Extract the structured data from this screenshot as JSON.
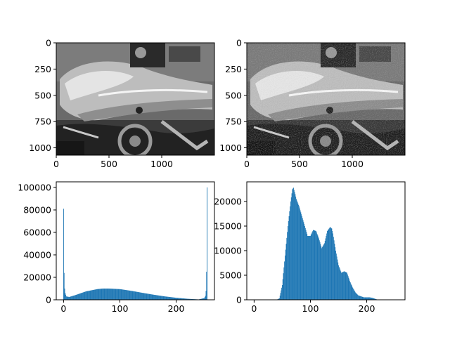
{
  "chart_data": [
    {
      "type": "image",
      "description_role": "noisy-image",
      "xlim": [
        0,
        1500
      ],
      "ylim": [
        1070,
        0
      ],
      "xticks": [
        0,
        500,
        1000
      ],
      "yticks": [
        0,
        250,
        500,
        750,
        1000
      ],
      "xtick_labels": [
        "0",
        "500",
        "1000"
      ],
      "ytick_labels": [
        "0",
        "250",
        "500",
        "750",
        "1000"
      ],
      "grid": false
    },
    {
      "type": "image",
      "description_role": "denoised-image",
      "xlim": [
        0,
        1500
      ],
      "ylim": [
        1070,
        0
      ],
      "xticks": [
        0,
        500,
        1000
      ],
      "yticks": [
        0,
        250,
        500,
        750,
        1000
      ],
      "xtick_labels": [
        "0",
        "500",
        "1000"
      ],
      "ytick_labels": [
        "0",
        "250",
        "500",
        "750",
        "1000"
      ],
      "grid": false
    },
    {
      "type": "bar",
      "xlim": [
        -13,
        268
      ],
      "ylim": [
        0,
        105000
      ],
      "xticks": [
        0,
        100,
        200
      ],
      "yticks": [
        0,
        20000,
        40000,
        60000,
        80000,
        100000
      ],
      "xtick_labels": [
        "0",
        "100",
        "200"
      ],
      "ytick_labels": [
        "0",
        "20000",
        "40000",
        "60000",
        "80000",
        "100000"
      ],
      "color": "#1f77b4",
      "grid": false,
      "x": [
        0,
        1,
        2,
        3,
        5,
        10,
        20,
        40,
        60,
        70,
        80,
        100,
        120,
        140,
        160,
        180,
        200,
        220,
        240,
        250,
        252,
        253,
        254,
        255
      ],
      "values": [
        81000,
        24000,
        10000,
        6000,
        3000,
        2500,
        4000,
        7500,
        9500,
        10000,
        10000,
        9500,
        8000,
        6200,
        4500,
        3000,
        1800,
        900,
        300,
        1500,
        3500,
        8000,
        25000,
        100000
      ]
    },
    {
      "type": "bar",
      "xlim": [
        -13,
        268
      ],
      "ylim": [
        0,
        24000
      ],
      "xticks": [
        0,
        100,
        200
      ],
      "yticks": [
        0,
        5000,
        10000,
        15000,
        20000
      ],
      "xtick_labels": [
        "0",
        "100",
        "200"
      ],
      "ytick_labels": [
        "0",
        "5000",
        "10000",
        "15000",
        "20000"
      ],
      "color": "#1f77b4",
      "grid": false,
      "x": [
        30,
        40,
        45,
        50,
        55,
        60,
        65,
        68,
        70,
        73,
        75,
        80,
        85,
        90,
        95,
        100,
        105,
        110,
        115,
        120,
        125,
        130,
        135,
        138,
        140,
        145,
        150,
        155,
        160,
        165,
        170,
        175,
        180,
        185,
        190,
        195,
        200,
        205,
        210,
        215,
        220,
        240,
        260
      ],
      "values": [
        0,
        0,
        300,
        3000,
        9000,
        15000,
        20000,
        22500,
        22800,
        21500,
        20500,
        19000,
        17000,
        15000,
        13000,
        13000,
        14200,
        14000,
        12500,
        10500,
        11500,
        14000,
        14800,
        14500,
        13500,
        10000,
        7000,
        5500,
        5800,
        5500,
        3800,
        2500,
        1500,
        900,
        700,
        500,
        500,
        500,
        400,
        200,
        0,
        0,
        0
      ]
    }
  ]
}
